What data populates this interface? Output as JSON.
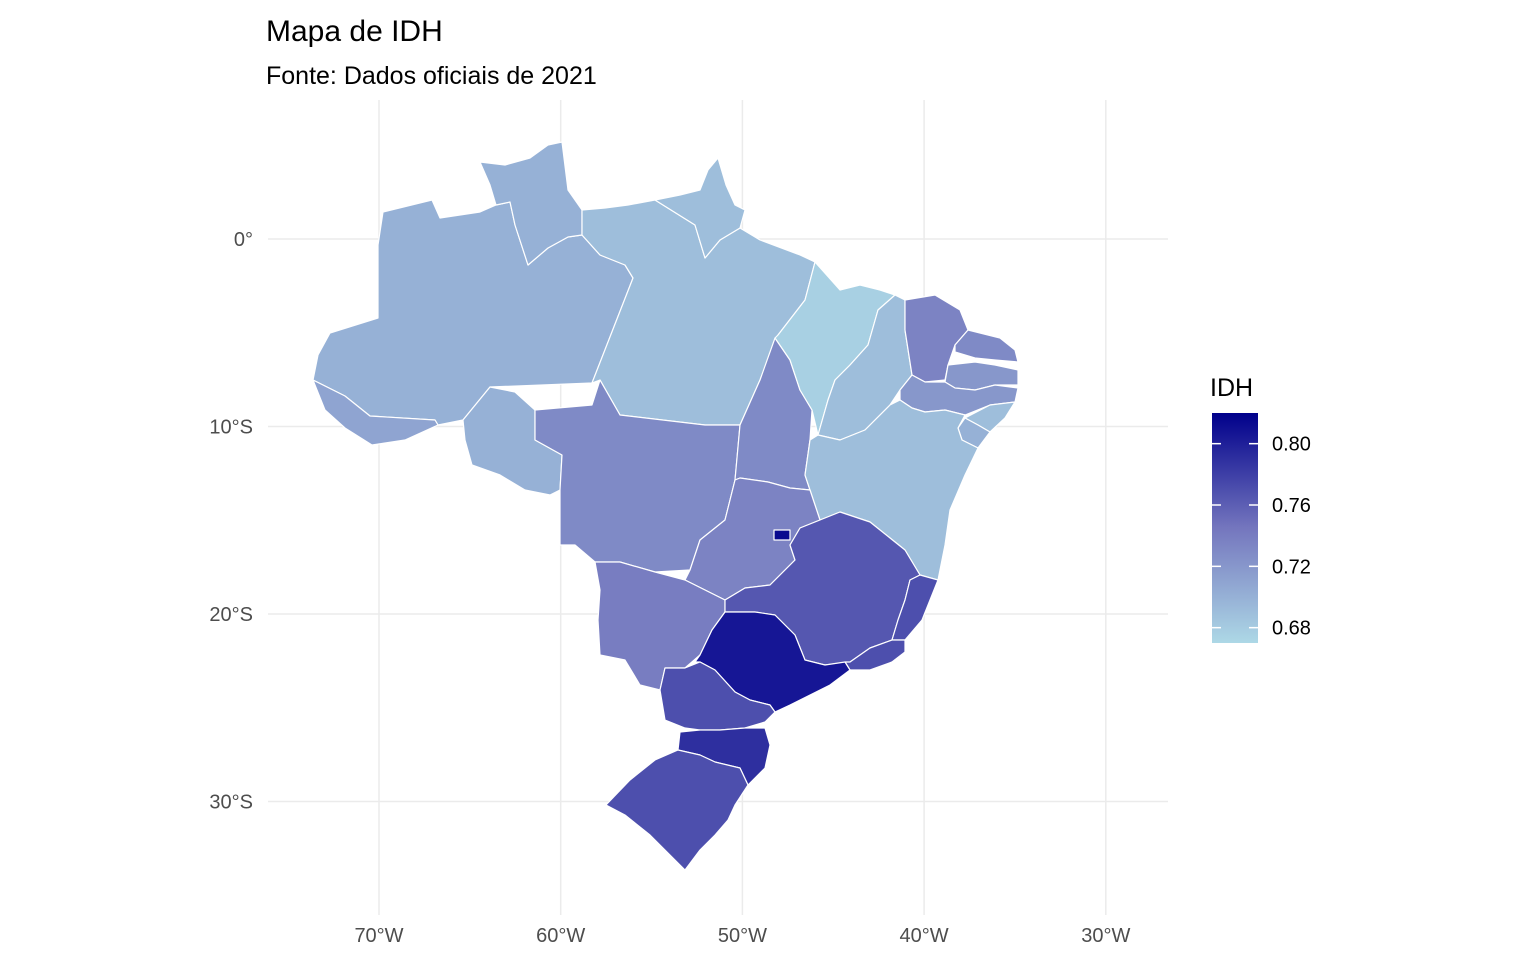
{
  "title": "Mapa de IDH",
  "subtitle": "Fonte: Dados oficiais de 2021",
  "map": {
    "type": "choropleth",
    "projection": "lon-lat",
    "lon_range": [
      -76,
      -27
    ],
    "lat_range": [
      -34.5,
      6
    ],
    "x_ticks": [
      {
        "value": -70,
        "label": "70°W"
      },
      {
        "value": -60,
        "label": "60°W"
      },
      {
        "value": -50,
        "label": "50°W"
      },
      {
        "value": -40,
        "label": "40°W"
      },
      {
        "value": -30,
        "label": "30°W"
      }
    ],
    "y_ticks": [
      {
        "value": 0,
        "label": "0°"
      },
      {
        "value": -10,
        "label": "10°S"
      },
      {
        "value": -20,
        "label": "20°S"
      },
      {
        "value": -30,
        "label": "30°S"
      }
    ],
    "grid": true
  },
  "legend": {
    "title": "IDH",
    "placement": "right",
    "range": [
      0.67,
      0.82
    ],
    "color_low": "#add8e6",
    "color_high": "#00008b",
    "ticks": [
      {
        "value": 0.8,
        "label": "0.80"
      },
      {
        "value": 0.76,
        "label": "0.76"
      },
      {
        "value": 0.72,
        "label": "0.72"
      },
      {
        "value": 0.68,
        "label": "0.68"
      }
    ]
  },
  "chart_data": {
    "type": "choropleth",
    "variable": "IDH",
    "regions": [
      {
        "id": "AM",
        "value": 0.7
      },
      {
        "id": "RR",
        "value": 0.7
      },
      {
        "id": "PA",
        "value": 0.69
      },
      {
        "id": "AP",
        "value": 0.69
      },
      {
        "id": "AC",
        "value": 0.71
      },
      {
        "id": "RO",
        "value": 0.7
      },
      {
        "id": "MT",
        "value": 0.73
      },
      {
        "id": "TO",
        "value": 0.73
      },
      {
        "id": "MA",
        "value": 0.676
      },
      {
        "id": "PI",
        "value": 0.69
      },
      {
        "id": "CE",
        "value": 0.735
      },
      {
        "id": "RN",
        "value": 0.73
      },
      {
        "id": "PB",
        "value": 0.72
      },
      {
        "id": "PE",
        "value": 0.72
      },
      {
        "id": "AL",
        "value": 0.69
      },
      {
        "id": "SE",
        "value": 0.7
      },
      {
        "id": "BA",
        "value": 0.69
      },
      {
        "id": "GO",
        "value": 0.735
      },
      {
        "id": "DF",
        "value": 0.814
      },
      {
        "id": "MS",
        "value": 0.74
      },
      {
        "id": "MG",
        "value": 0.765
      },
      {
        "id": "ES",
        "value": 0.77
      },
      {
        "id": "RJ",
        "value": 0.77
      },
      {
        "id": "SP",
        "value": 0.806
      },
      {
        "id": "PR",
        "value": 0.77
      },
      {
        "id": "SC",
        "value": 0.79
      },
      {
        "id": "RS",
        "value": 0.77
      }
    ]
  }
}
